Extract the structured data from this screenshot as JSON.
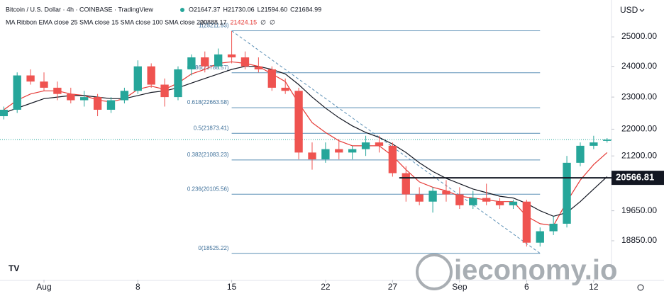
{
  "chart_data": {
    "type": "candlestick",
    "title": "Bitcoin / U.S. Dollar · 4h · COINBASE · TradingView",
    "ohlc_labels": [
      "O21647.37",
      "H21730.06",
      "L21594.60",
      "C21684.99"
    ],
    "indicator_title": "MA Ribbon EMA close 25 SMA close 15 SMA close 100 SMA close 200",
    "indicator_values": [
      "20888.17",
      "21424.15",
      "∅",
      "∅"
    ],
    "currency": "USD",
    "watermark": "ieconomy.io",
    "up_color": "#26a69a",
    "down_color": "#ef5350",
    "log_scale": true,
    "x": [
      -3,
      -2,
      -1,
      0,
      1,
      2,
      3,
      4,
      5,
      6,
      7,
      8,
      9,
      10,
      11,
      12,
      13,
      14,
      15,
      16,
      17,
      18,
      19,
      20,
      21,
      22,
      23,
      24,
      25,
      26,
      27,
      28,
      29,
      30,
      31,
      32,
      33,
      34,
      35,
      36,
      37,
      38,
      39,
      40,
      41,
      42
    ],
    "open": [
      22400,
      22600,
      23700,
      23500,
      23300,
      23100,
      22900,
      23000,
      22600,
      22900,
      23200,
      24000,
      23400,
      23000,
      23900,
      24300,
      24000,
      24400,
      24300,
      24000,
      23900,
      23300,
      23200,
      21300,
      21100,
      21400,
      21300,
      21400,
      21600,
      21500,
      20700,
      20100,
      19900,
      20200,
      20100,
      19800,
      20000,
      19900,
      19800,
      19900,
      18800,
      19100,
      19300,
      21000,
      21500,
      21647.37
    ],
    "high": [
      22700,
      23800,
      23900,
      23800,
      23500,
      23300,
      23200,
      23100,
      23000,
      23300,
      24200,
      24100,
      23600,
      24000,
      24400,
      24500,
      24600,
      25200,
      24500,
      24300,
      24000,
      23600,
      23300,
      21600,
      21600,
      21700,
      21500,
      21800,
      21800,
      21600,
      20900,
      20300,
      20300,
      20500,
      20300,
      20200,
      20400,
      20000,
      19950,
      19950,
      19200,
      19500,
      21200,
      21600,
      21800,
      21730.06
    ],
    "low": [
      22300,
      22500,
      23400,
      23200,
      22900,
      22800,
      22700,
      22400,
      22500,
      22800,
      23100,
      23300,
      22700,
      22900,
      23700,
      23800,
      23900,
      24100,
      23900,
      23800,
      23200,
      23100,
      21100,
      20800,
      21000,
      21100,
      21100,
      21200,
      21300,
      20600,
      19900,
      19800,
      19600,
      19900,
      19700,
      19700,
      19800,
      19700,
      19700,
      18700,
      18700,
      19000,
      19200,
      20900,
      21400,
      21594.6
    ],
    "close": [
      22600,
      23700,
      23500,
      23300,
      23100,
      22900,
      23000,
      22600,
      22900,
      23200,
      24000,
      23400,
      23000,
      23900,
      24300,
      24000,
      24400,
      24300,
      24000,
      23900,
      23300,
      23200,
      21300,
      21100,
      21400,
      21300,
      21400,
      21600,
      21500,
      20700,
      20100,
      19900,
      20200,
      20100,
      19800,
      20000,
      19900,
      19800,
      19900,
      18800,
      19100,
      19300,
      21000,
      21500,
      21600,
      21684.99
    ],
    "ma_lines": [
      {
        "color": "#e53935",
        "values": [
          22600,
          22900,
          23100,
          23200,
          23200,
          23100,
          23050,
          22900,
          22850,
          22950,
          23250,
          23350,
          23250,
          23450,
          23750,
          23900,
          24100,
          24150,
          24100,
          24000,
          23750,
          23500,
          22800,
          22200,
          21900,
          21650,
          21500,
          21500,
          21500,
          21200,
          20800,
          20450,
          20300,
          20200,
          20050,
          20000,
          19950,
          19900,
          19900,
          19500,
          19300,
          19250,
          19900,
          20500,
          20950,
          21300
        ]
      },
      {
        "color": "#131722",
        "values": [
          22500,
          22650,
          22800,
          22950,
          23000,
          23050,
          23050,
          23000,
          22950,
          22950,
          23050,
          23150,
          23200,
          23300,
          23450,
          23600,
          23750,
          23900,
          24000,
          24000,
          23900,
          23750,
          23400,
          23000,
          22650,
          22350,
          22100,
          21900,
          21750,
          21550,
          21300,
          21000,
          20750,
          20550,
          20400,
          20250,
          20150,
          20050,
          20000,
          19850,
          19650,
          19500,
          19600,
          19900,
          20250,
          20600
        ]
      }
    ],
    "fib_color": "#5a8fb5",
    "fib_start_x": 14,
    "fib_end_x": 37,
    "fib_levels": [
      {
        "label": "0(18525.22)",
        "value": 18525.22
      },
      {
        "label": "0.236(20105.56)",
        "value": 20105.56
      },
      {
        "label": "0.382(21083.23)",
        "value": 21083.23
      },
      {
        "label": "0.5(21873.41)",
        "value": 21873.41
      },
      {
        "label": "0.618(22663.58)",
        "value": 22663.58
      },
      {
        "label": "0.786(23788.57)",
        "value": 23788.57
      },
      {
        "label": "1(25211.93)",
        "value": 25211.93
      }
    ],
    "price_line": {
      "value": 20566.81,
      "start_x": 26.5
    },
    "xlim": [
      -3.28,
      42.33
    ],
    "ylim": [
      17860,
      26310
    ],
    "xticks": [
      {
        "value": 0,
        "label": "Aug"
      },
      7,
      14,
      21,
      26,
      {
        "value": 31,
        "label": "Sep"
      },
      36,
      41
    ],
    "xtick_labels": [
      "Aug",
      "8",
      "15",
      "22",
      "27",
      "Sep",
      "6",
      "12"
    ],
    "yticks": [
      {
        "value": 25000,
        "label": "25000.00"
      },
      {
        "value": 24000,
        "label": "24000.00"
      },
      {
        "value": 23000,
        "label": "23000.00"
      },
      {
        "value": 22000,
        "label": "22000.00"
      },
      {
        "value": 21200,
        "label": "21200.00"
      },
      {
        "value": 19650,
        "label": "19650.00"
      },
      {
        "value": 18850,
        "label": "18850.00"
      }
    ]
  }
}
